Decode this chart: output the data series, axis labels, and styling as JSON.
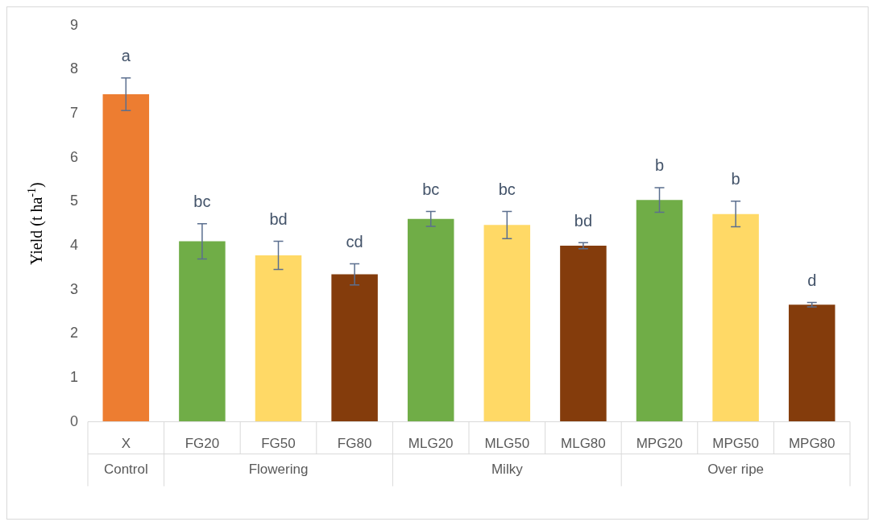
{
  "chart_data": {
    "type": "bar",
    "ylabel": "Yield (t ha$^{-1}$)",
    "categories": [
      "X",
      "FG20",
      "FG50",
      "FG80",
      "MLG20",
      "MLG50",
      "MLG80",
      "MPG20",
      "MPG50",
      "MPG80"
    ],
    "values": [
      7.44,
      4.1,
      3.78,
      3.35,
      4.61,
      4.47,
      4.0,
      5.04,
      4.72,
      2.66
    ],
    "errors": [
      0.37,
      0.4,
      0.32,
      0.24,
      0.17,
      0.31,
      0.07,
      0.28,
      0.29,
      0.05
    ],
    "colors": [
      "#ed7d31",
      "#70ad47",
      "#ffd966",
      "#843c0c",
      "#70ad47",
      "#ffd966",
      "#843c0c",
      "#70ad47",
      "#ffd966",
      "#843c0c"
    ],
    "value_labels": [
      "a",
      "bc",
      "bd",
      "cd",
      "bc",
      "bc",
      "bd",
      "b",
      "b",
      "d"
    ],
    "annotations": [
      "Control",
      "Flowering",
      "Milky",
      "Over ripe"
    ],
    "ylim": [
      0,
      9
    ],
    "yticks": [
      0,
      1,
      2,
      3,
      4,
      5,
      6,
      7,
      8,
      9
    ],
    "grid": false,
    "legend": false
  }
}
